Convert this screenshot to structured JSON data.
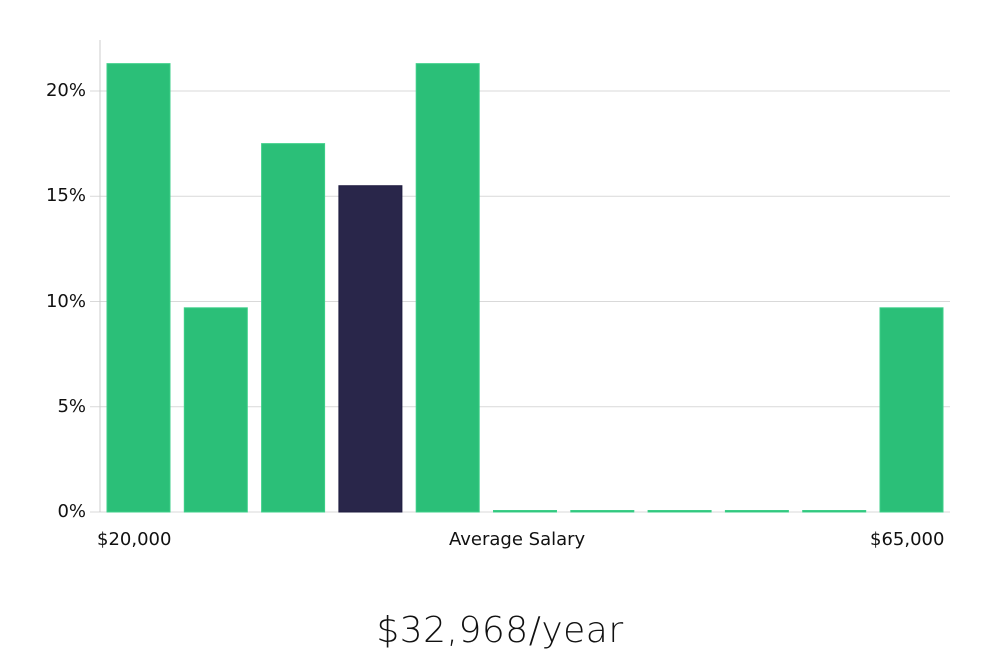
{
  "chart_data": {
    "type": "bar",
    "title": "",
    "xlabel": "Average Salary",
    "ylabel": "",
    "x_range_labels": [
      "$20,000",
      "$65,000"
    ],
    "categories": [
      "Bin 1",
      "Bin 2",
      "Bin 3",
      "Bin 4",
      "Bin 5",
      "Bin 6",
      "Bin 7",
      "Bin 8",
      "Bin 9",
      "Bin 10",
      "Bin 11"
    ],
    "values": [
      21.3,
      9.7,
      17.5,
      15.5,
      21.3,
      0,
      0,
      0,
      0,
      0,
      9.7
    ],
    "highlighted_index": 3,
    "ylim": [
      0,
      22.5
    ],
    "yticks": [
      0,
      5,
      10,
      15,
      20
    ],
    "ytick_labels": [
      "0%",
      "5%",
      "10%",
      "15%",
      "20%"
    ],
    "grid": true,
    "legend": null,
    "colors": {
      "bar": "#2bbf78",
      "highlight": "#29264a",
      "grid": "#d9d9d9",
      "axis": "#cccccc"
    }
  },
  "labels": {
    "x_min": "$20,000",
    "x_center": "Average Salary",
    "x_max": "$65,000",
    "summary": "$32,968/year"
  }
}
